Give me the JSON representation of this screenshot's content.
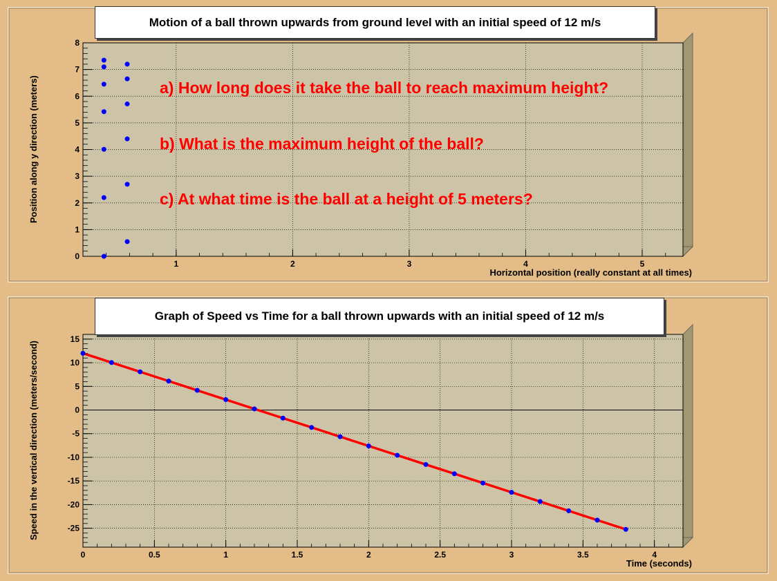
{
  "colors": {
    "canvas_bg": "#e3bc87",
    "plot_bg": "#cdc4a8",
    "frame_side": "#a19770",
    "point": "#0000ff",
    "fit_line": "#ff0000",
    "question_text": "#ff0000"
  },
  "chart_data": [
    {
      "type": "scatter",
      "title": "Motion of a ball thrown upwards from ground level with an initial speed of 12 m/s",
      "xlabel": "Horizontal position (really constant at all times)",
      "ylabel": "Position along y direction (meters)",
      "xlim": [
        0.2,
        5.35
      ],
      "ylim": [
        0,
        8
      ],
      "x_ticks": [
        "1",
        "2",
        "3",
        "4",
        "5"
      ],
      "y_ticks": [
        "0",
        "1",
        "2",
        "3",
        "4",
        "5",
        "6",
        "7",
        "8"
      ],
      "grid": true,
      "series": [
        {
          "values": [
            {
              "x": 0.38,
              "y": 0.0
            },
            {
              "x": 0.38,
              "y": 2.2
            },
            {
              "x": 0.38,
              "y": 4.01
            },
            {
              "x": 0.38,
              "y": 5.42
            },
            {
              "x": 0.38,
              "y": 6.45
            },
            {
              "x": 0.38,
              "y": 7.1
            },
            {
              "x": 0.38,
              "y": 7.35
            },
            {
              "x": 0.58,
              "y": 7.2
            },
            {
              "x": 0.58,
              "y": 6.65
            },
            {
              "x": 0.58,
              "y": 5.71
            },
            {
              "x": 0.58,
              "y": 4.4
            },
            {
              "x": 0.58,
              "y": 2.7
            },
            {
              "x": 0.58,
              "y": 0.55
            }
          ]
        }
      ],
      "annotations": [
        "a) How long does it take the ball to reach maximum height?",
        "b) What is the maximum height of the ball?",
        "c) At what time is the ball at a height of 5 meters?"
      ]
    },
    {
      "type": "scatter",
      "title": "Graph of Speed vs Time for a ball thrown upwards with an initial speed of 12 m/s",
      "xlabel": "Time (seconds)",
      "ylabel": "Speed in the vertical direction (meters/second)",
      "xlim": [
        0,
        4.2
      ],
      "ylim": [
        -29,
        16
      ],
      "x_ticks": [
        "0",
        "0.5",
        "1",
        "1.5",
        "2",
        "2.5",
        "3",
        "3.5",
        "4"
      ],
      "y_ticks": [
        "15",
        "10",
        "5",
        "0",
        "-5",
        "-10",
        "-15",
        "-20",
        "-25"
      ],
      "grid": true,
      "zero_line": true,
      "x": [
        0,
        0.2,
        0.4,
        0.6,
        0.8,
        1.0,
        1.2,
        1.4,
        1.6,
        1.8,
        2.0,
        2.2,
        2.4,
        2.6,
        2.8,
        3.0,
        3.2,
        3.4,
        3.6,
        3.8
      ],
      "series": [
        {
          "values": [
            12.0,
            10.04,
            8.08,
            6.12,
            4.16,
            2.2,
            0.24,
            -1.72,
            -3.68,
            -5.64,
            -7.6,
            -9.56,
            -11.52,
            -13.48,
            -15.44,
            -17.4,
            -19.36,
            -21.32,
            -23.28,
            -25.24
          ]
        }
      ],
      "fit_line": {
        "x": [
          0,
          3.8
        ],
        "y": [
          12.0,
          -25.24
        ]
      }
    }
  ]
}
